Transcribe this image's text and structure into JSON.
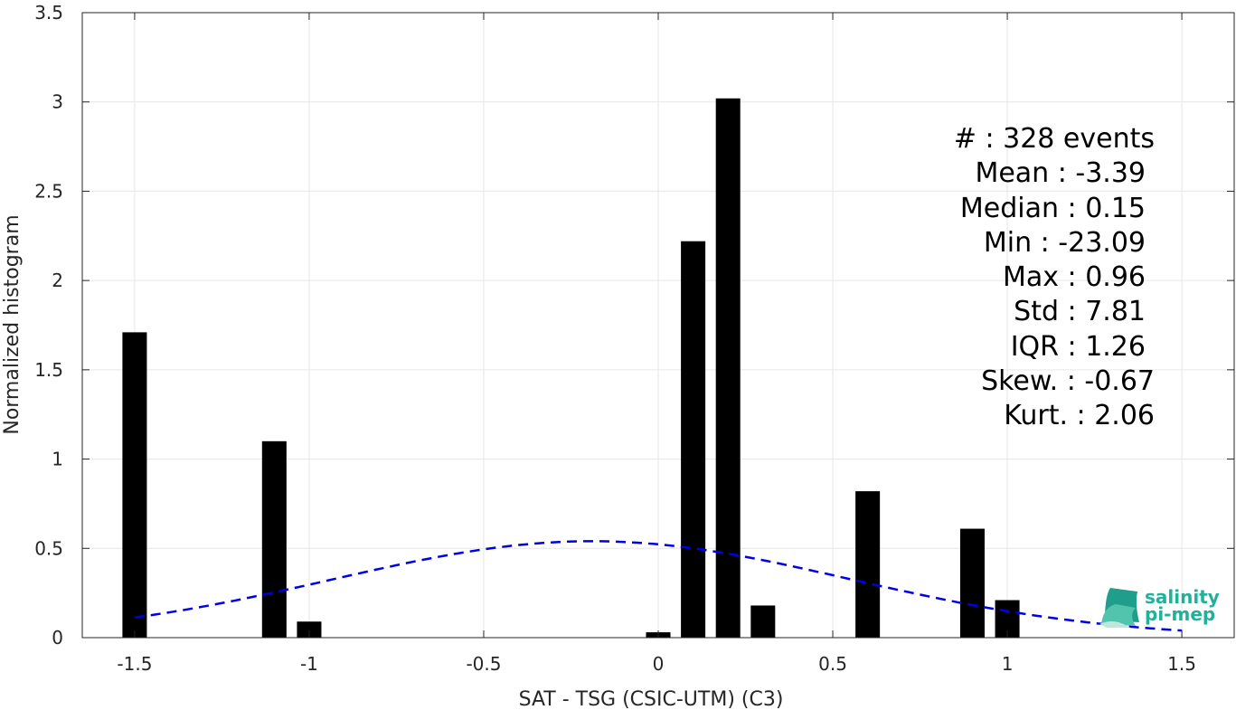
{
  "chart_data": {
    "type": "bar",
    "xlabel": "SAT - TSG (CSIC-UTM) (C3)",
    "ylabel": "Normalized histogram",
    "xlim": [
      -1.65,
      1.65
    ],
    "ylim": [
      0,
      3.5
    ],
    "xticks": [
      -1.5,
      -1,
      -0.5,
      0,
      0.5,
      1,
      1.5
    ],
    "xtick_labels": [
      "-1.5",
      "-1",
      "-0.5",
      "0",
      "0.5",
      "1",
      "1.5"
    ],
    "yticks": [
      0,
      0.5,
      1,
      1.5,
      2,
      2.5,
      3,
      3.5
    ],
    "ytick_labels": [
      "0",
      "0.5",
      "1",
      "1.5",
      "2",
      "2.5",
      "3",
      "3.5"
    ],
    "grid": true,
    "bar_width": 0.07,
    "bars": [
      {
        "x": -1.5,
        "value": 1.71
      },
      {
        "x": -1.1,
        "value": 1.1
      },
      {
        "x": -1.0,
        "value": 0.09
      },
      {
        "x": 0.0,
        "value": 0.03
      },
      {
        "x": 0.1,
        "value": 2.22
      },
      {
        "x": 0.2,
        "value": 3.02
      },
      {
        "x": 0.3,
        "value": 0.18
      },
      {
        "x": 0.6,
        "value": 0.82
      },
      {
        "x": 0.9,
        "value": 0.61
      },
      {
        "x": 1.0,
        "value": 0.21
      }
    ],
    "gaussian_fit": {
      "mean": -0.19,
      "peak": 0.54,
      "sigma": 0.74,
      "x_range": [
        -1.5,
        1.5
      ],
      "color": "#0000e6",
      "style": "dashed"
    },
    "bar_color": "#000000"
  },
  "stats": {
    "lines": [
      "#  : 328 events",
      "Mean : -3.39",
      "Median : 0.15",
      "Min : -23.09",
      "Max : 0.96",
      "Std : 7.81",
      "IQR : 1.26",
      "Skew. : -0.67",
      "Kurt. : 2.06"
    ]
  },
  "logo": {
    "line1": "salinity",
    "line2": "pi-mep",
    "color": "#20b19a"
  }
}
